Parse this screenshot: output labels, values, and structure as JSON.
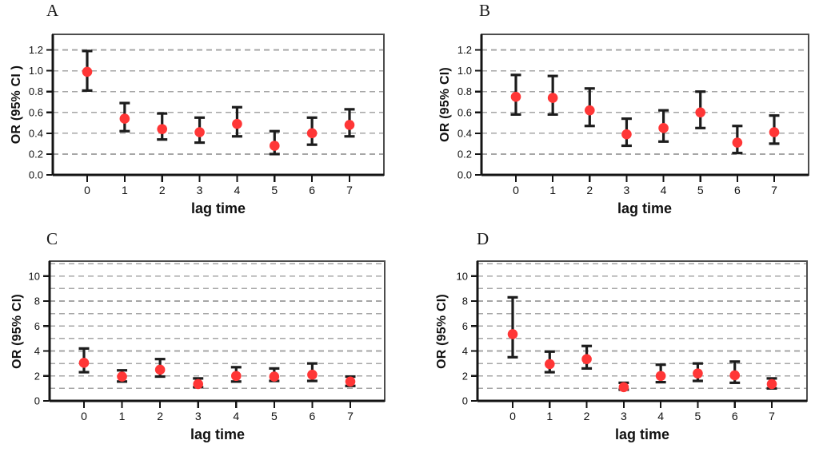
{
  "figure": {
    "background": "#ffffff",
    "marker_color": "#ff3636",
    "errorbar_color": "#1c1c1c",
    "gridline_color": "#a6a6a6",
    "box_border_color": "#4d4d4d",
    "axis_color": "#141414"
  },
  "chart_data": [
    {
      "type": "scatter",
      "panel": "A",
      "xlabel": "lag time",
      "ylabel": "OR (95% CI )",
      "x": [
        0,
        1,
        2,
        3,
        4,
        5,
        6,
        7
      ],
      "xtick_labels": [
        "0",
        "1",
        "2",
        "3",
        "4",
        "5",
        "6",
        "7"
      ],
      "or": [
        0.99,
        0.54,
        0.44,
        0.41,
        0.49,
        0.28,
        0.4,
        0.48
      ],
      "ci_low": [
        0.81,
        0.42,
        0.34,
        0.31,
        0.37,
        0.2,
        0.29,
        0.37
      ],
      "ci_high": [
        1.19,
        0.69,
        0.59,
        0.55,
        0.65,
        0.42,
        0.55,
        0.63
      ],
      "ylim": [
        0,
        1.35
      ],
      "yticks": [
        0,
        0.2,
        0.4,
        0.6,
        0.8,
        1.0,
        1.2
      ],
      "ytick_labels": [
        "0.0",
        "0.2",
        "0.4",
        "0.6",
        "0.8",
        "1.0",
        "1.2"
      ],
      "gridlines": [
        0.2,
        0.4,
        0.6,
        0.8,
        1.0,
        1.2
      ],
      "grid": "horizontal-dashed",
      "legend": "none"
    },
    {
      "type": "scatter",
      "panel": "B",
      "xlabel": "lag time",
      "ylabel": "OR (95% CI)",
      "x": [
        0,
        1,
        2,
        3,
        4,
        5,
        6,
        7
      ],
      "xtick_labels": [
        "0",
        "1",
        "2",
        "3",
        "4",
        "5",
        "6",
        "7"
      ],
      "or": [
        0.75,
        0.74,
        0.62,
        0.39,
        0.45,
        0.6,
        0.31,
        0.41
      ],
      "ci_low": [
        0.58,
        0.58,
        0.47,
        0.28,
        0.32,
        0.45,
        0.21,
        0.3
      ],
      "ci_high": [
        0.96,
        0.95,
        0.83,
        0.54,
        0.62,
        0.8,
        0.47,
        0.57
      ],
      "ylim": [
        0,
        1.35
      ],
      "yticks": [
        0,
        0.2,
        0.4,
        0.6,
        0.8,
        1.0,
        1.2
      ],
      "ytick_labels": [
        "0.0",
        "0.2",
        "0.4",
        "0.6",
        "0.8",
        "1.0",
        "1.2"
      ],
      "gridlines": [
        0.2,
        0.4,
        0.6,
        0.8,
        1.0,
        1.2
      ],
      "grid": "horizontal-dashed",
      "legend": "none"
    },
    {
      "type": "scatter",
      "panel": "C",
      "xlabel": "lag time",
      "ylabel": "OR (95% CI)",
      "x": [
        0,
        1,
        2,
        3,
        4,
        5,
        6,
        7
      ],
      "xtick_labels": [
        "0",
        "1",
        "2",
        "3",
        "4",
        "5",
        "6",
        "7"
      ],
      "or": [
        3.05,
        1.95,
        2.5,
        1.35,
        2.0,
        1.95,
        2.1,
        1.55
      ],
      "ci_low": [
        2.3,
        1.55,
        1.95,
        1.1,
        1.55,
        1.6,
        1.6,
        1.2
      ],
      "ci_high": [
        4.2,
        2.45,
        3.35,
        1.8,
        2.7,
        2.6,
        3.0,
        1.95
      ],
      "ylim": [
        0,
        11.2
      ],
      "yticks": [
        0,
        2,
        4,
        6,
        8,
        10
      ],
      "ytick_labels": [
        "0",
        "2",
        "4",
        "6",
        "8",
        "10"
      ],
      "gridlines": [
        1,
        2,
        3,
        4,
        5,
        6,
        7,
        8,
        9,
        10,
        11
      ],
      "grid": "horizontal-dashed",
      "legend": "none"
    },
    {
      "type": "scatter",
      "panel": "D",
      "xlabel": "lag time",
      "ylabel": "OR (95% CI)",
      "x": [
        0,
        1,
        2,
        3,
        4,
        5,
        6,
        7
      ],
      "xtick_labels": [
        "0",
        "1",
        "2",
        "3",
        "4",
        "5",
        "6",
        "7"
      ],
      "or": [
        5.35,
        2.95,
        3.35,
        1.1,
        2.0,
        2.2,
        2.05,
        1.35
      ],
      "ci_low": [
        3.5,
        2.3,
        2.6,
        0.9,
        1.5,
        1.6,
        1.45,
        1.0
      ],
      "ci_high": [
        8.3,
        3.95,
        4.4,
        1.45,
        2.9,
        3.0,
        3.15,
        1.8
      ],
      "ylim": [
        0,
        11.2
      ],
      "yticks": [
        0,
        2,
        4,
        6,
        8,
        10
      ],
      "ytick_labels": [
        "0",
        "2",
        "4",
        "6",
        "8",
        "10"
      ],
      "gridlines": [
        1,
        2,
        3,
        4,
        5,
        6,
        7,
        8,
        9,
        10,
        11
      ],
      "grid": "horizontal-dashed",
      "legend": "none"
    }
  ]
}
